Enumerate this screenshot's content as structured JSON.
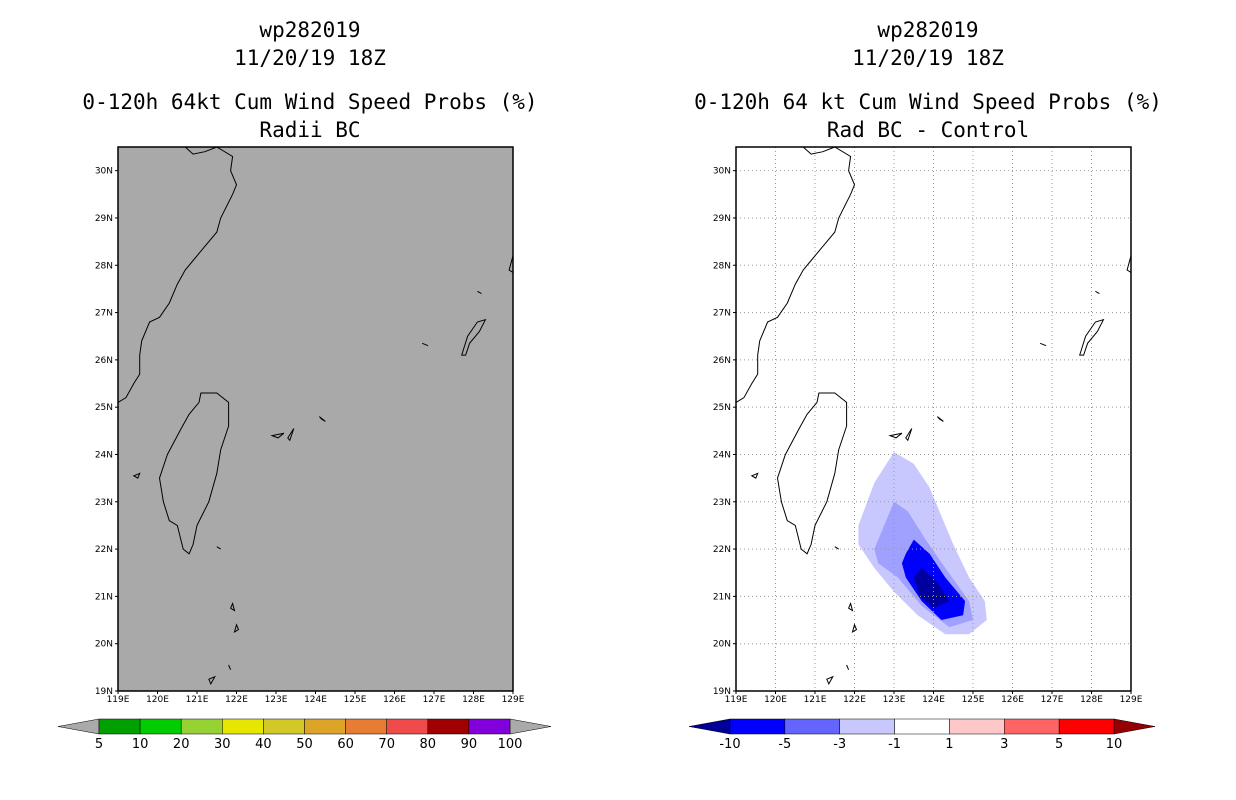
{
  "chart_data": [
    {
      "type": "heatmap",
      "storm_id": "wp282019",
      "date": "11/20/19 18Z",
      "title": "0-120h 64kt Cum Wind Speed Probs (%)",
      "subtitle": "Radii BC",
      "x_ticks": [
        "119E",
        "120E",
        "121E",
        "122E",
        "123E",
        "124E",
        "125E",
        "126E",
        "127E",
        "128E",
        "129E"
      ],
      "y_ticks": [
        "19N",
        "20N",
        "21N",
        "22N",
        "23N",
        "24N",
        "25N",
        "26N",
        "27N",
        "28N",
        "29N",
        "30N"
      ],
      "xlim": [
        119,
        129
      ],
      "ylim": [
        19,
        30.5
      ],
      "grid": false,
      "field_color": "#a9a9a9",
      "colorbar": {
        "labels": [
          "5",
          "10",
          "20",
          "30",
          "40",
          "50",
          "60",
          "70",
          "80",
          "90",
          "100"
        ],
        "colors": [
          "#00a000",
          "#00cc00",
          "#96d232",
          "#e6e600",
          "#d2c828",
          "#dca528",
          "#e67d32",
          "#f04b4b",
          "#a00000",
          "#8200dc"
        ],
        "end_color": "#aaaaaa"
      }
    },
    {
      "type": "heatmap",
      "storm_id": "wp282019",
      "date": "11/20/19 18Z",
      "title": "0-120h 64 kt Cum Wind Speed Probs (%)",
      "subtitle": "Rad BC - Control",
      "x_ticks": [
        "119E",
        "120E",
        "121E",
        "122E",
        "123E",
        "124E",
        "125E",
        "126E",
        "127E",
        "128E",
        "129E"
      ],
      "y_ticks": [
        "19N",
        "20N",
        "21N",
        "22N",
        "23N",
        "24N",
        "25N",
        "26N",
        "27N",
        "28N",
        "29N",
        "30N"
      ],
      "xlim": [
        119,
        129
      ],
      "ylim": [
        19,
        30.5
      ],
      "grid": true,
      "contours": [
        {
          "level": "-1 to -3",
          "color": "#c8c8ff",
          "polygon": [
            [
              122.1,
              22.5
            ],
            [
              122.5,
              23.4
            ],
            [
              123.0,
              24.05
            ],
            [
              123.5,
              23.8
            ],
            [
              123.9,
              23.3
            ],
            [
              124.2,
              22.7
            ],
            [
              124.5,
              22.1
            ],
            [
              124.9,
              21.4
            ],
            [
              125.3,
              20.9
            ],
            [
              125.35,
              20.5
            ],
            [
              124.9,
              20.2
            ],
            [
              124.3,
              20.2
            ],
            [
              123.6,
              20.6
            ],
            [
              123.0,
              21.1
            ],
            [
              122.5,
              21.6
            ],
            [
              122.1,
              22.1
            ]
          ]
        },
        {
          "level": "-3 to -5",
          "color": "#a0a0ff",
          "polygon": [
            [
              122.7,
              22.4
            ],
            [
              123.0,
              23.0
            ],
            [
              123.35,
              22.8
            ],
            [
              123.8,
              22.2
            ],
            [
              124.3,
              21.6
            ],
            [
              124.9,
              20.9
            ],
            [
              125.0,
              20.5
            ],
            [
              124.4,
              20.35
            ],
            [
              123.7,
              20.8
            ],
            [
              123.1,
              21.4
            ],
            [
              122.6,
              21.7
            ],
            [
              122.5,
              22.0
            ]
          ]
        },
        {
          "level": "-5 to -10",
          "color": "#0000ff",
          "polygon": [
            [
              123.3,
              21.9
            ],
            [
              123.5,
              22.2
            ],
            [
              123.9,
              21.9
            ],
            [
              124.3,
              21.4
            ],
            [
              124.8,
              20.9
            ],
            [
              124.75,
              20.6
            ],
            [
              124.2,
              20.5
            ],
            [
              123.7,
              20.9
            ],
            [
              123.3,
              21.4
            ],
            [
              123.2,
              21.7
            ]
          ]
        },
        {
          "level": "< -10",
          "color": "#0000a0",
          "polygon": [
            [
              123.5,
              21.4
            ],
            [
              123.7,
              21.6
            ],
            [
              124.1,
              21.3
            ],
            [
              124.4,
              20.9
            ],
            [
              124.0,
              20.75
            ],
            [
              123.65,
              21.0
            ]
          ]
        }
      ],
      "colorbar": {
        "labels": [
          "-10",
          "-5",
          "-3",
          "-1",
          "1",
          "3",
          "5",
          "10"
        ],
        "colors": [
          "#0000ff",
          "#6464ff",
          "#c8c8ff",
          "#ffffff",
          "#ffc8c8",
          "#ff6464",
          "#ff0000"
        ],
        "low_end_color": "#000096",
        "high_end_color": "#960000"
      }
    }
  ],
  "coastlines": {
    "taiwan": [
      [
        121.1,
        25.3
      ],
      [
        121.5,
        25.3
      ],
      [
        121.8,
        25.1
      ],
      [
        121.8,
        24.6
      ],
      [
        121.6,
        24.1
      ],
      [
        121.5,
        23.6
      ],
      [
        121.3,
        23.0
      ],
      [
        121.0,
        22.5
      ],
      [
        120.9,
        22.1
      ],
      [
        120.8,
        21.9
      ],
      [
        120.65,
        22.0
      ],
      [
        120.5,
        22.5
      ],
      [
        120.3,
        22.6
      ],
      [
        120.15,
        23.0
      ],
      [
        120.05,
        23.5
      ],
      [
        120.25,
        24.0
      ],
      [
        120.6,
        24.55
      ],
      [
        120.8,
        24.85
      ],
      [
        121.05,
        25.1
      ]
    ],
    "mainland": [
      [
        119.0,
        25.1
      ],
      [
        119.2,
        25.2
      ],
      [
        119.4,
        25.5
      ],
      [
        119.55,
        25.7
      ],
      [
        119.55,
        26.1
      ],
      [
        119.6,
        26.4
      ],
      [
        119.8,
        26.8
      ],
      [
        120.05,
        26.9
      ],
      [
        120.3,
        27.2
      ],
      [
        120.5,
        27.6
      ],
      [
        120.7,
        27.9
      ],
      [
        120.9,
        28.1
      ],
      [
        121.2,
        28.4
      ],
      [
        121.5,
        28.7
      ],
      [
        121.6,
        29.0
      ],
      [
        121.9,
        29.5
      ],
      [
        122.0,
        29.7
      ],
      [
        121.85,
        30.0
      ],
      [
        121.9,
        30.3
      ],
      [
        121.5,
        30.5
      ],
      [
        121.2,
        30.4
      ],
      [
        120.9,
        30.35
      ],
      [
        120.7,
        30.5
      ]
    ],
    "islands": [
      [
        [
          119.4,
          23.55
        ],
        [
          119.55,
          23.6
        ],
        [
          119.5,
          23.5
        ]
      ],
      [
        [
          121.5,
          22.05
        ],
        [
          121.6,
          22.0
        ]
      ],
      [
        [
          121.9,
          20.85
        ],
        [
          121.95,
          20.7
        ],
        [
          121.85,
          20.75
        ]
      ],
      [
        [
          122.0,
          20.4
        ],
        [
          121.95,
          20.25
        ],
        [
          122.05,
          20.3
        ]
      ],
      [
        [
          121.8,
          19.55
        ],
        [
          121.85,
          19.45
        ]
      ],
      [
        [
          121.3,
          19.25
        ],
        [
          121.45,
          19.3
        ],
        [
          121.35,
          19.15
        ]
      ],
      [
        [
          122.9,
          24.4
        ],
        [
          123.2,
          24.45
        ],
        [
          123.05,
          24.35
        ]
      ],
      [
        [
          123.3,
          24.35
        ],
        [
          123.45,
          24.55
        ],
        [
          123.35,
          24.3
        ]
      ],
      [
        [
          124.1,
          24.8
        ],
        [
          124.25,
          24.7
        ],
        [
          124.15,
          24.75
        ]
      ],
      [
        [
          126.7,
          26.35
        ],
        [
          126.85,
          26.3
        ]
      ],
      [
        [
          127.7,
          26.1
        ],
        [
          127.85,
          26.5
        ],
        [
          128.1,
          26.8
        ],
        [
          128.3,
          26.85
        ],
        [
          128.15,
          26.6
        ],
        [
          127.9,
          26.35
        ],
        [
          127.8,
          26.1
        ]
      ],
      [
        [
          128.1,
          27.45
        ],
        [
          128.2,
          27.4
        ]
      ],
      [
        [
          128.9,
          27.9
        ],
        [
          129.0,
          28.2
        ],
        [
          129.0,
          27.85
        ]
      ]
    ]
  }
}
